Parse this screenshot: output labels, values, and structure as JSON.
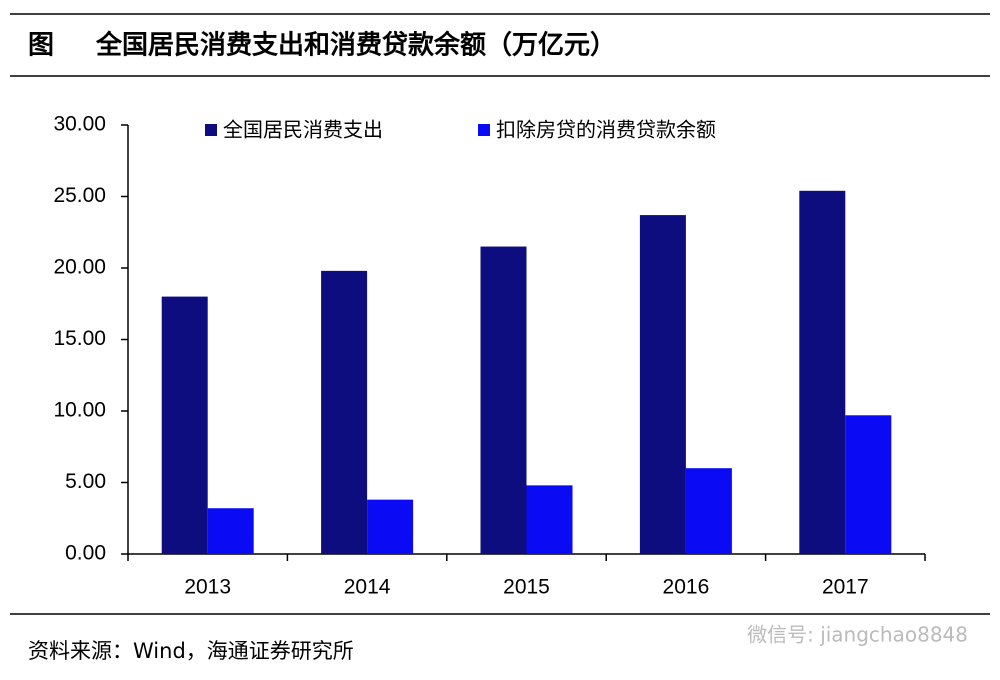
{
  "chart_data": {
    "type": "bar",
    "figure_label": "图",
    "title": "全国居民消费支出和消费贷款余额（万亿元）",
    "categories": [
      "2013",
      "2014",
      "2015",
      "2016",
      "2017"
    ],
    "series": [
      {
        "name": "全国居民消费支出",
        "color": "#0d0d80",
        "values": [
          18.0,
          19.8,
          21.5,
          23.7,
          25.4
        ]
      },
      {
        "name": "扣除房贷的消费贷款余额",
        "color": "#0a0af5",
        "values": [
          3.2,
          3.8,
          4.8,
          6.0,
          9.7
        ]
      }
    ],
    "ylim": [
      0,
      30
    ],
    "yticks": [
      {
        "value": 0,
        "label": "0.00"
      },
      {
        "value": 5,
        "label": "5.00"
      },
      {
        "value": 10,
        "label": "10.00"
      },
      {
        "value": 15,
        "label": "15.00"
      },
      {
        "value": 20,
        "label": "20.00"
      },
      {
        "value": 25,
        "label": "25.00"
      },
      {
        "value": 30,
        "label": "30.00"
      }
    ],
    "legend": "top",
    "source": "资料来源：Wind，海通证券研究所",
    "watermark": "微信号: jiangchao8848"
  }
}
